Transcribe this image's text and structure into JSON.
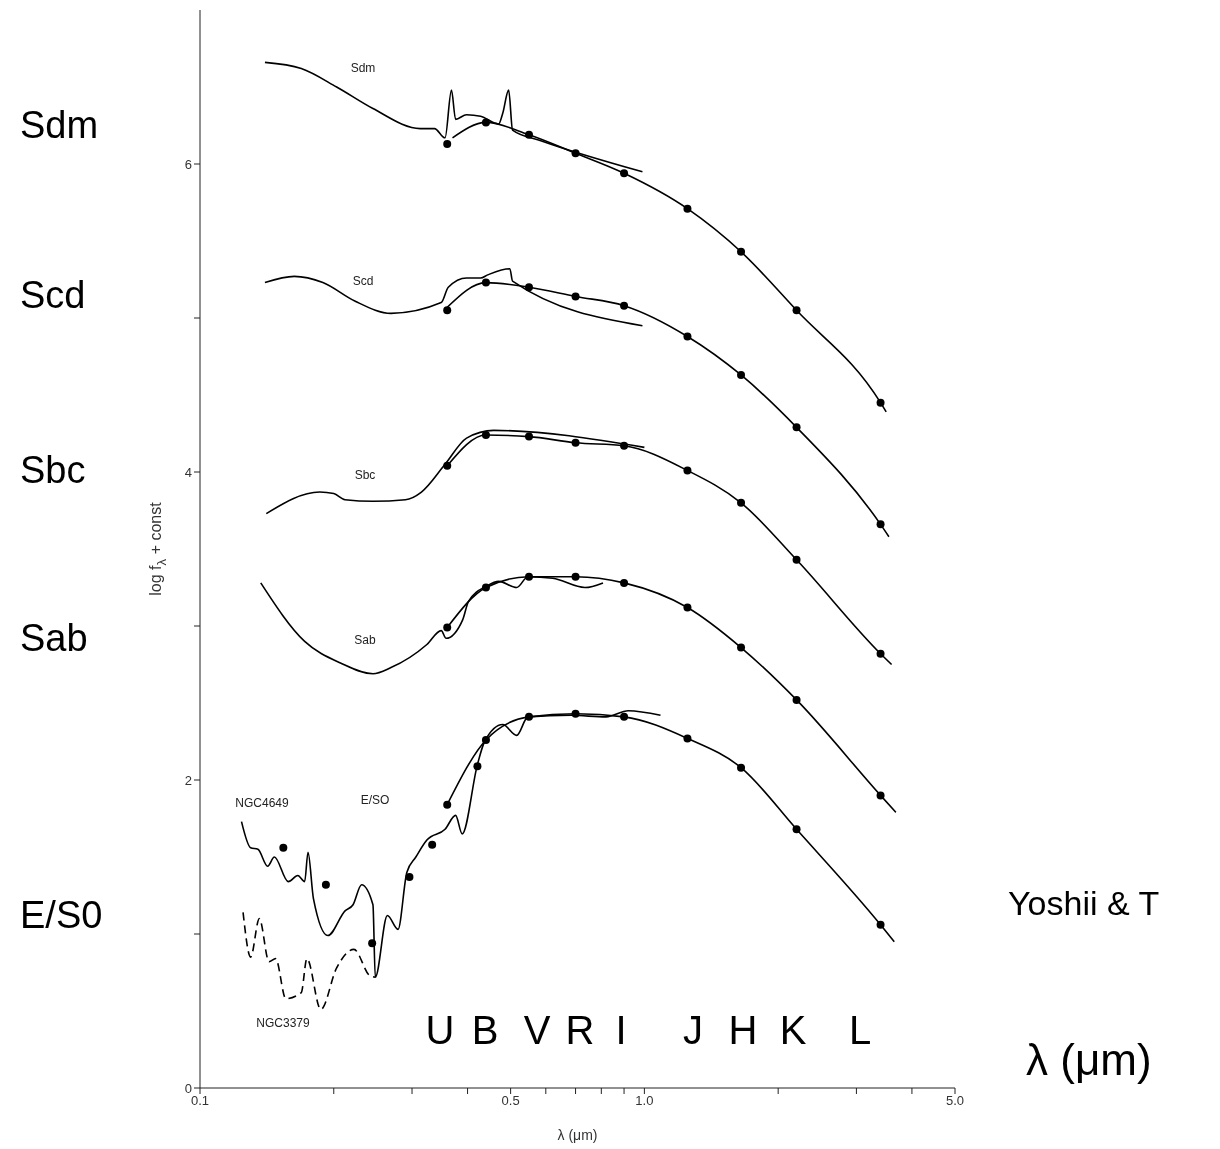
{
  "chart_data": {
    "type": "line",
    "xlabel": "λ (μm)",
    "ylabel": "log f$_{λ}$ + const",
    "log": "x",
    "xlim": [
      0.1,
      5.0
    ],
    "ylim": [
      0,
      7
    ],
    "xticks": [
      0.1,
      {
        "value": 0.2,
        "label": null
      },
      {
        "value": 0.3,
        "label": null
      },
      {
        "value": 0.4,
        "label": null
      },
      0.5,
      {
        "value": 0.6,
        "label": null
      },
      {
        "value": 0.7,
        "label": null
      },
      {
        "value": 0.8,
        "label": null
      },
      {
        "value": 0.9,
        "label": null
      },
      {
        "value": 1,
        "label": "1.0"
      },
      {
        "value": 2,
        "label": null
      },
      {
        "value": 3,
        "label": null
      },
      {
        "value": 4,
        "label": null
      },
      {
        "value": 5,
        "label": "5.0"
      }
    ],
    "yticks": [
      0,
      {
        "value": 1,
        "label": null
      },
      2,
      {
        "value": 3,
        "label": null
      },
      4,
      {
        "value": 5,
        "label": null
      },
      6
    ],
    "series": [
      {
        "type": "line",
        "color": "#000000",
        "x": [
          0.14,
          0.169,
          0.203,
          0.245,
          0.313,
          0.337,
          0.356,
          0.368,
          0.376,
          0.398,
          0.428,
          0.47,
          0.48,
          0.495,
          0.505,
          0.587,
          0.99
        ],
        "values": [
          6.66,
          6.62,
          6.5,
          6.36,
          6.23,
          6.23,
          6.17,
          6.48,
          6.29,
          6.32,
          6.31,
          6.26,
          6.33,
          6.48,
          6.22,
          6.15,
          5.95
        ]
      },
      {
        "type": "line",
        "color": "#000000",
        "x": [
          0.37,
          0.44,
          0.55,
          0.7,
          0.9,
          1.25,
          1.65,
          2.2,
          3.4,
          3.5
        ],
        "values": [
          6.17,
          6.27,
          6.19,
          6.07,
          5.94,
          5.71,
          5.43,
          5.05,
          4.45,
          4.39
        ]
      },
      {
        "type": "scatter",
        "color": "#000000",
        "marker": "circle",
        "x": [
          0.36,
          0.44,
          0.55,
          0.7,
          0.9,
          1.25,
          1.65,
          2.2,
          3.4
        ],
        "values": [
          6.13,
          6.27,
          6.19,
          6.07,
          5.94,
          5.71,
          5.43,
          5.05,
          4.45
        ]
      },
      {
        "type": "line",
        "color": "#000000",
        "x": [
          0.14,
          0.163,
          0.189,
          0.223,
          0.269,
          0.349,
          0.362,
          0.398,
          0.428,
          0.444,
          0.498,
          0.505,
          0.99
        ],
        "values": [
          5.23,
          5.27,
          5.23,
          5.11,
          5.03,
          5.1,
          5.2,
          5.26,
          5.26,
          5.28,
          5.32,
          5.24,
          4.95
        ]
      },
      {
        "type": "line",
        "color": "#000000",
        "x": [
          0.36,
          0.44,
          0.55,
          0.7,
          0.9,
          1.25,
          1.65,
          2.2,
          3.4,
          3.55
        ],
        "values": [
          5.07,
          5.23,
          5.2,
          5.14,
          5.08,
          4.88,
          4.63,
          4.29,
          3.66,
          3.58
        ]
      },
      {
        "type": "scatter",
        "color": "#000000",
        "marker": "circle",
        "x": [
          0.36,
          0.44,
          0.55,
          0.7,
          0.9,
          1.25,
          1.65,
          2.2,
          3.4
        ],
        "values": [
          5.05,
          5.23,
          5.2,
          5.14,
          5.08,
          4.88,
          4.63,
          4.29,
          3.66
        ]
      },
      {
        "type": "line",
        "color": "#000000",
        "x": [
          0.141,
          0.186,
          0.2,
          0.212,
          0.245,
          0.29,
          0.315,
          0.356,
          0.398,
          0.458,
          1.0
        ],
        "values": [
          3.73,
          3.87,
          3.86,
          3.82,
          3.81,
          3.82,
          3.87,
          4.05,
          4.22,
          4.27,
          4.16
        ]
      },
      {
        "type": "line",
        "color": "#000000",
        "x": [
          0.36,
          0.44,
          0.55,
          0.7,
          0.9,
          1.25,
          1.65,
          2.2,
          3.4,
          3.6
        ],
        "values": [
          4.04,
          4.24,
          4.23,
          4.19,
          4.17,
          4.01,
          3.8,
          3.43,
          2.82,
          2.75
        ]
      },
      {
        "type": "scatter",
        "color": "#000000",
        "marker": "circle",
        "x": [
          0.36,
          0.44,
          0.55,
          0.7,
          0.9,
          1.25,
          1.65,
          2.2,
          3.4
        ],
        "values": [
          4.04,
          4.24,
          4.23,
          4.19,
          4.17,
          4.01,
          3.8,
          3.43,
          2.82
        ]
      },
      {
        "type": "line",
        "color": "#000000",
        "x": [
          0.137,
          0.172,
          0.207,
          0.245,
          0.269,
          0.324,
          0.349,
          0.358,
          0.39,
          0.402,
          0.442,
          0.47,
          0.516,
          0.547,
          0.622,
          0.735,
          0.807
        ],
        "values": [
          3.28,
          2.9,
          2.76,
          2.69,
          2.73,
          2.88,
          2.97,
          2.92,
          3.04,
          3.16,
          3.26,
          3.29,
          3.25,
          3.32,
          3.31,
          3.25,
          3.28
        ]
      },
      {
        "type": "line",
        "color": "#000000",
        "x": [
          0.36,
          0.44,
          0.55,
          0.7,
          0.9,
          1.25,
          1.65,
          2.2,
          3.4,
          3.68
        ],
        "values": [
          2.99,
          3.25,
          3.32,
          3.32,
          3.28,
          3.12,
          2.86,
          2.52,
          1.9,
          1.79
        ]
      },
      {
        "type": "scatter",
        "color": "#000000",
        "marker": "circle",
        "x": [
          0.36,
          0.44,
          0.55,
          0.7,
          0.9,
          1.25,
          1.65,
          2.2,
          3.4
        ],
        "values": [
          2.99,
          3.25,
          3.32,
          3.32,
          3.28,
          3.12,
          2.86,
          2.52,
          1.9
        ]
      },
      {
        "type": "line",
        "color": "#000000",
        "x": [
          0.124,
          0.13,
          0.135,
          0.142,
          0.147,
          0.158,
          0.166,
          0.172,
          0.175,
          0.18,
          0.194,
          0.212,
          0.221,
          0.231,
          0.245,
          0.248,
          0.264,
          0.279,
          0.292,
          0.306,
          0.324,
          0.356,
          0.376,
          0.389,
          0.421,
          0.437,
          0.48,
          0.516,
          0.547,
          0.684,
          0.82,
          0.92,
          1.087
        ],
        "values": [
          1.73,
          1.56,
          1.55,
          1.44,
          1.5,
          1.34,
          1.38,
          1.34,
          1.53,
          1.23,
          0.99,
          1.15,
          1.19,
          1.32,
          1.19,
          0.72,
          1.12,
          1.03,
          1.4,
          1.5,
          1.61,
          1.68,
          1.77,
          1.65,
          2.1,
          2.25,
          2.36,
          2.29,
          2.41,
          2.42,
          2.41,
          2.45,
          2.42
        ]
      },
      {
        "color": "#000000",
        "line_style": "dashed",
        "x": [
          0.125,
          0.13,
          0.136,
          0.143,
          0.148,
          0.156,
          0.169,
          0.174,
          0.187,
          0.203,
          0.222,
          0.241,
          0.248
        ],
        "values": [
          1.14,
          0.85,
          1.1,
          0.82,
          0.84,
          0.58,
          0.62,
          0.84,
          0.51,
          0.78,
          0.9,
          0.73,
          0.72
        ]
      },
      {
        "type": "line",
        "color": "#000000",
        "x": [
          0.36,
          0.44,
          0.55,
          0.7,
          0.9,
          1.25,
          1.65,
          2.2,
          3.4,
          3.65
        ],
        "values": [
          1.84,
          2.26,
          2.41,
          2.43,
          2.41,
          2.27,
          2.08,
          1.68,
          1.06,
          0.95
        ]
      },
      {
        "type": "scatter",
        "color": "#000000",
        "marker": "circle",
        "x": [
          0.36,
          0.44,
          0.55,
          0.7,
          0.9,
          1.25,
          1.65,
          2.2,
          3.4
        ],
        "values": [
          1.84,
          2.26,
          2.41,
          2.43,
          2.41,
          2.27,
          2.08,
          1.68,
          1.06
        ]
      },
      {
        "type": "scatter",
        "color": "#000000",
        "marker": "circle",
        "x": [
          0.154,
          0.192,
          0.244,
          0.296,
          0.333,
          0.421
        ],
        "values": [
          1.56,
          1.32,
          0.94,
          1.37,
          1.58,
          2.09
        ]
      }
    ],
    "annotations": [
      "Sdm",
      "Scd",
      "Sbc",
      "Sab",
      "E/SO",
      "NGC4649",
      "NGC3379",
      "U",
      "B",
      "V",
      "R",
      "I",
      "J",
      "H",
      "K",
      "L",
      "Sdm",
      "Scd",
      "Sbc",
      "Sab",
      "E/S0",
      "Yoshii & T",
      "λ (μm)"
    ]
  }
}
